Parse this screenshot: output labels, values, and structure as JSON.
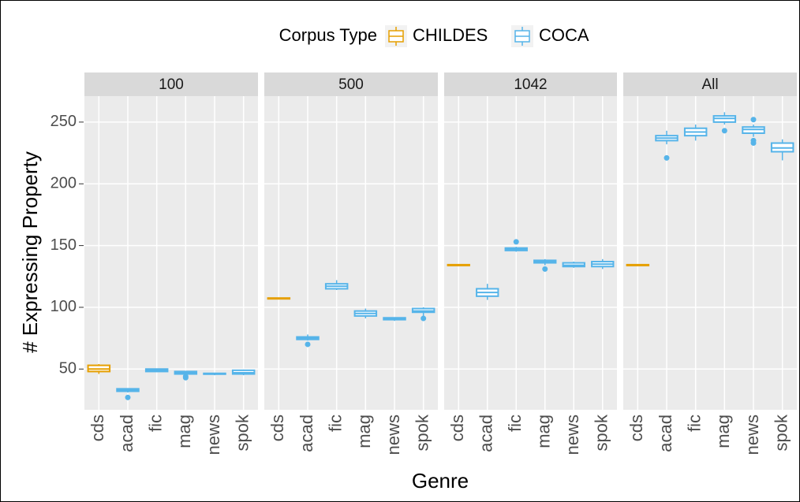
{
  "chart_data": {
    "type": "box",
    "legend_title": "Corpus Type",
    "series": [
      {
        "name": "CHILDES",
        "color": "#E69F00"
      },
      {
        "name": "COCA",
        "color": "#56B4E9"
      }
    ],
    "y_label": "# Expressing Property",
    "x_label": "Genre",
    "ylim": [
      17,
      271
    ],
    "yticks": [
      50,
      100,
      150,
      200,
      250
    ],
    "grid": true,
    "facets": [
      {
        "title": "100",
        "categories": [
          "cds",
          "acad",
          "fic",
          "mag",
          "news",
          "spok"
        ],
        "boxes": [
          {
            "series": 0,
            "min": 46,
            "q1": 48,
            "median": 50,
            "q3": 53,
            "max": 54,
            "outliers": []
          },
          {
            "series": 1,
            "min": 31,
            "q1": 32,
            "median": 33,
            "q3": 34,
            "max": 34,
            "outliers": [
              27
            ]
          },
          {
            "series": 1,
            "min": 48,
            "q1": 48,
            "median": 49,
            "q3": 50,
            "max": 50,
            "outliers": []
          },
          {
            "series": 1,
            "min": 46,
            "q1": 46,
            "median": 47,
            "q3": 48,
            "max": 48,
            "outliers": [
              43,
              44
            ]
          },
          {
            "series": 1,
            "min": 45,
            "q1": 46,
            "median": 46,
            "q3": 46.5,
            "max": 47,
            "outliers": []
          },
          {
            "series": 1,
            "min": 45,
            "q1": 46,
            "median": 47,
            "q3": 49,
            "max": 49,
            "outliers": []
          }
        ]
      },
      {
        "title": "500",
        "categories": [
          "cds",
          "acad",
          "fic",
          "mag",
          "news",
          "spok"
        ],
        "boxes": [
          {
            "series": 0,
            "min": 106.5,
            "q1": 107,
            "median": 107,
            "q3": 107.5,
            "max": 107.5,
            "outliers": []
          },
          {
            "series": 1,
            "min": 73,
            "q1": 74,
            "median": 75,
            "q3": 76,
            "max": 78,
            "outliers": [
              70
            ]
          },
          {
            "series": 1,
            "min": 114,
            "q1": 115,
            "median": 117,
            "q3": 119,
            "max": 122,
            "outliers": []
          },
          {
            "series": 1,
            "min": 91,
            "q1": 93,
            "median": 95,
            "q3": 97,
            "max": 99,
            "outliers": []
          },
          {
            "series": 1,
            "min": 89,
            "q1": 90,
            "median": 91,
            "q3": 91.5,
            "max": 92,
            "outliers": []
          },
          {
            "series": 1,
            "min": 93,
            "q1": 96,
            "median": 97,
            "q3": 99,
            "max": 100,
            "outliers": [
              91
            ]
          }
        ]
      },
      {
        "title": "1042",
        "categories": [
          "cds",
          "acad",
          "fic",
          "mag",
          "news",
          "spok"
        ],
        "boxes": [
          {
            "series": 0,
            "min": 133.5,
            "q1": 134,
            "median": 134,
            "q3": 134.5,
            "max": 134.5,
            "outliers": []
          },
          {
            "series": 1,
            "min": 106,
            "q1": 109,
            "median": 112,
            "q3": 115,
            "max": 119,
            "outliers": []
          },
          {
            "series": 1,
            "min": 145,
            "q1": 146,
            "median": 147,
            "q3": 148,
            "max": 149,
            "outliers": [
              153
            ]
          },
          {
            "series": 1,
            "min": 134,
            "q1": 136,
            "median": 137,
            "q3": 138,
            "max": 139,
            "outliers": [
              131
            ]
          },
          {
            "series": 1,
            "min": 132,
            "q1": 133,
            "median": 134,
            "q3": 136,
            "max": 137,
            "outliers": []
          },
          {
            "series": 1,
            "min": 131,
            "q1": 133,
            "median": 135,
            "q3": 137,
            "max": 139,
            "outliers": []
          }
        ]
      },
      {
        "title": "All",
        "categories": [
          "cds",
          "acad",
          "fic",
          "mag",
          "news",
          "spok"
        ],
        "boxes": [
          {
            "series": 0,
            "min": 133.5,
            "q1": 134,
            "median": 134,
            "q3": 134.5,
            "max": 134.5,
            "outliers": []
          },
          {
            "series": 1,
            "min": 232,
            "q1": 235,
            "median": 237,
            "q3": 239,
            "max": 243,
            "outliers": [
              221
            ]
          },
          {
            "series": 1,
            "min": 235,
            "q1": 239,
            "median": 242,
            "q3": 245,
            "max": 248,
            "outliers": []
          },
          {
            "series": 1,
            "min": 248,
            "q1": 250,
            "median": 253,
            "q3": 255,
            "max": 258,
            "outliers": [
              243
            ]
          },
          {
            "series": 1,
            "min": 238,
            "q1": 241,
            "median": 244,
            "q3": 246,
            "max": 248,
            "outliers": [
              252,
              233,
              235
            ]
          },
          {
            "series": 1,
            "min": 219,
            "q1": 226,
            "median": 229,
            "q3": 233,
            "max": 236,
            "outliers": []
          }
        ]
      }
    ]
  }
}
